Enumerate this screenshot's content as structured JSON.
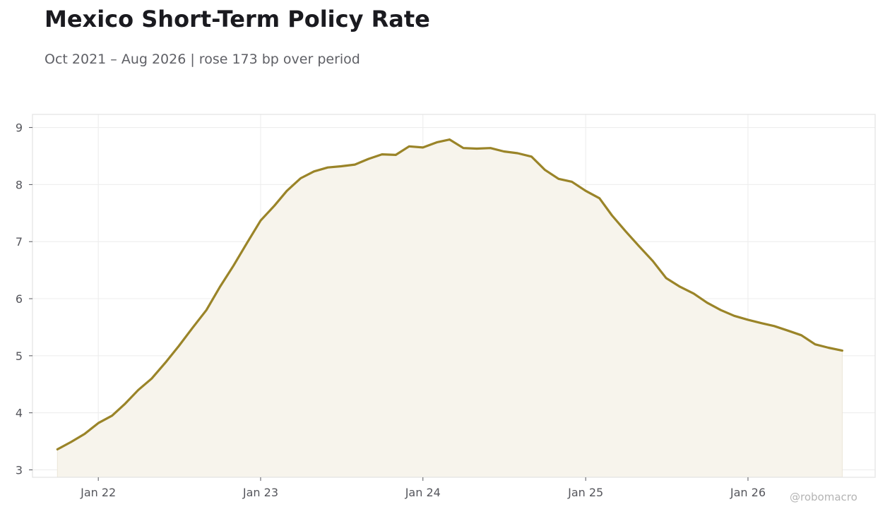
{
  "title": "Mexico Short-Term Policy Rate",
  "subtitle": "Oct 2021 – Aug 2026 | rose 173 bp over period",
  "watermark": "@robomacro",
  "colors": {
    "line": "#9a8428",
    "fill": "#f7f4ec",
    "grid": "#ececec",
    "frame": "#e2e2e2",
    "text": "#55565c"
  },
  "chart_data": {
    "type": "area",
    "grid": true,
    "xlim": [
      "2021-08-06",
      "2026-10-14"
    ],
    "ylim": [
      2.87,
      9.23
    ],
    "x_ticks": [
      {
        "date": "2022-01-01",
        "label": "Jan 22"
      },
      {
        "date": "2023-01-01",
        "label": "Jan 23"
      },
      {
        "date": "2024-01-01",
        "label": "Jan 24"
      },
      {
        "date": "2025-01-01",
        "label": "Jan 25"
      },
      {
        "date": "2026-01-01",
        "label": "Jan 26"
      }
    ],
    "y_ticks": [
      3,
      4,
      5,
      6,
      7,
      8,
      9
    ],
    "series": [
      {
        "x": [
          "2021-10",
          "2021-11",
          "2021-12",
          "2022-01",
          "2022-02",
          "2022-03",
          "2022-04",
          "2022-05",
          "2022-06",
          "2022-07",
          "2022-08",
          "2022-09",
          "2022-10",
          "2022-11",
          "2022-12",
          "2023-01",
          "2023-02",
          "2023-03",
          "2023-04",
          "2023-05",
          "2023-06",
          "2023-07",
          "2023-08",
          "2023-09",
          "2023-10",
          "2023-11",
          "2023-12",
          "2024-01",
          "2024-02",
          "2024-03",
          "2024-04",
          "2024-05",
          "2024-06",
          "2024-07",
          "2024-08",
          "2024-09",
          "2024-10",
          "2024-11",
          "2024-12",
          "2025-01",
          "2025-02",
          "2025-03",
          "2025-04",
          "2025-05",
          "2025-06",
          "2025-07",
          "2025-08",
          "2025-09",
          "2025-10",
          "2025-11",
          "2025-12",
          "2026-01",
          "2026-02",
          "2026-03",
          "2026-04",
          "2026-05",
          "2026-06",
          "2026-07",
          "2026-08"
        ],
        "values": [
          3.36,
          3.49,
          3.63,
          3.82,
          3.95,
          4.15,
          4.4,
          4.6,
          4.88,
          5.17,
          5.49,
          5.8,
          6.2,
          6.58,
          6.97,
          7.37,
          7.63,
          7.89,
          8.11,
          8.23,
          8.3,
          8.32,
          8.35,
          8.45,
          8.53,
          8.52,
          8.67,
          8.65,
          8.74,
          8.79,
          8.64,
          8.63,
          8.64,
          8.58,
          8.55,
          8.49,
          8.26,
          8.1,
          8.05,
          7.89,
          7.76,
          7.46,
          7.18,
          6.92,
          6.66,
          6.36,
          6.21,
          6.09,
          5.93,
          5.8,
          5.7,
          5.63,
          5.57,
          5.52,
          5.44,
          5.36,
          5.2,
          5.14,
          5.09
        ]
      }
    ]
  }
}
